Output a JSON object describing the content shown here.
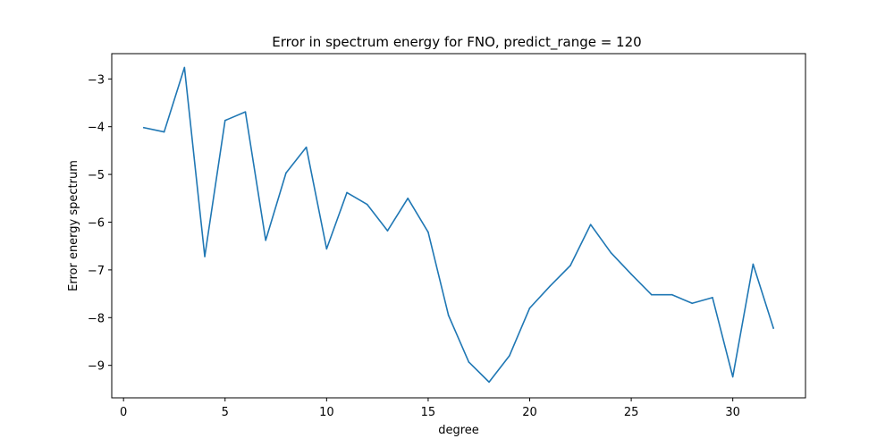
{
  "chart_data": {
    "type": "line",
    "title": "Error in spectrum energy for FNO, predict_range = 120",
    "xlabel": "degree",
    "ylabel": "Error energy spectrum",
    "xlim": [
      -0.58,
      33.58
    ],
    "ylim": [
      -9.68,
      -2.47
    ],
    "xticks": [
      0,
      5,
      10,
      15,
      20,
      25,
      30
    ],
    "yticks": [
      -9,
      -8,
      -7,
      -6,
      -5,
      -4,
      -3
    ],
    "ytick_labels": [
      "−9",
      "−8",
      "−7",
      "−6",
      "−5",
      "−4",
      "−3"
    ],
    "grid": false,
    "series": [
      {
        "color": "#1f77b4",
        "x": [
          1,
          2,
          3,
          4,
          5,
          6,
          7,
          8,
          9,
          10,
          11,
          12,
          13,
          14,
          15,
          16,
          17,
          18,
          19,
          20,
          21,
          22,
          23,
          24,
          25,
          26,
          27,
          28,
          29,
          30,
          31,
          32
        ],
        "y": [
          -4.02,
          -4.11,
          -2.76,
          -6.72,
          -3.87,
          -3.69,
          -6.38,
          -4.97,
          -4.43,
          -6.56,
          -5.38,
          -5.63,
          -6.18,
          -5.5,
          -6.21,
          -7.95,
          -8.93,
          -9.35,
          -8.8,
          -7.8,
          -7.34,
          -6.91,
          -6.05,
          -6.64,
          -7.09,
          -7.52,
          -7.52,
          -7.7,
          -7.58,
          -9.24,
          -6.88,
          -8.22
        ]
      }
    ]
  }
}
